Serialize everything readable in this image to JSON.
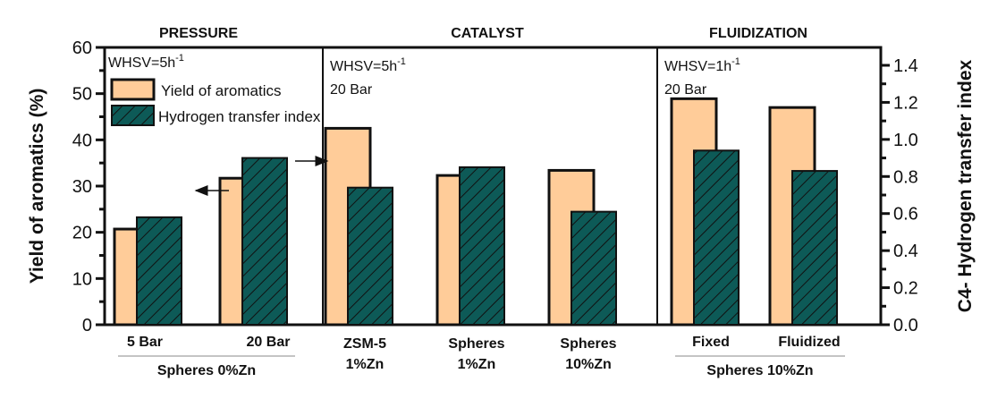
{
  "chart_data": {
    "type": "bar",
    "title": "",
    "sections": [
      {
        "title": "PRESSURE",
        "notes": [
          "WHSV=5h",
          "-1",
          ""
        ],
        "categories": [
          0,
          1
        ],
        "group_label": "Spheres 0%Zn"
      },
      {
        "title": "CATALYST",
        "notes": [
          "WHSV=5h",
          "-1",
          "20 Bar"
        ],
        "categories": [
          2,
          3,
          4
        ],
        "group_label": ""
      },
      {
        "title": "FLUIDIZATION",
        "notes": [
          "WHSV=1h",
          "-1",
          "20 Bar"
        ],
        "categories": [
          5,
          6
        ],
        "group_label": "Spheres 10%Zn"
      }
    ],
    "categories": [
      [
        "5 Bar"
      ],
      [
        "20 Bar"
      ],
      [
        "ZSM-5",
        "1%Zn"
      ],
      [
        "Spheres",
        "1%Zn"
      ],
      [
        "Spheres",
        "10%Zn"
      ],
      [
        "Fixed"
      ],
      [
        "Fluidized"
      ]
    ],
    "series": [
      {
        "name": "Yield of aromatics",
        "axis": "left",
        "color": "#FFCC99",
        "pattern": "solid",
        "values": [
          20.7,
          31.7,
          42.5,
          32.3,
          33.4,
          48.9,
          47.0
        ]
      },
      {
        "name": "Hydrogen transfer index",
        "axis": "right",
        "color": "#0D5A57",
        "pattern": "diagonal-hatch",
        "values": [
          0.58,
          0.9,
          0.74,
          0.85,
          0.61,
          0.94,
          0.83
        ]
      }
    ],
    "left_axis": {
      "label": "Yield of aromatics (%)",
      "ylim": [
        0,
        60
      ],
      "ticks": [
        "0",
        "10",
        "20",
        "30",
        "40",
        "50",
        "60"
      ]
    },
    "right_axis": {
      "label": "C4- Hydrogen transfer index",
      "ylim": [
        0,
        1.5
      ],
      "ticks": [
        "0.0",
        "0.2",
        "0.4",
        "0.6",
        "0.8",
        "1.0",
        "1.2",
        "1.4"
      ]
    },
    "legend": {
      "placement": "top-left",
      "entries": [
        "Yield of aromatics",
        "Hydrogen transfer index"
      ]
    },
    "annotations": [
      "arrow pointing to left axis near 20 Bar yield bar",
      "arrow pointing to right axis near 20 Bar hydrogen transfer bar"
    ],
    "grid": false
  }
}
